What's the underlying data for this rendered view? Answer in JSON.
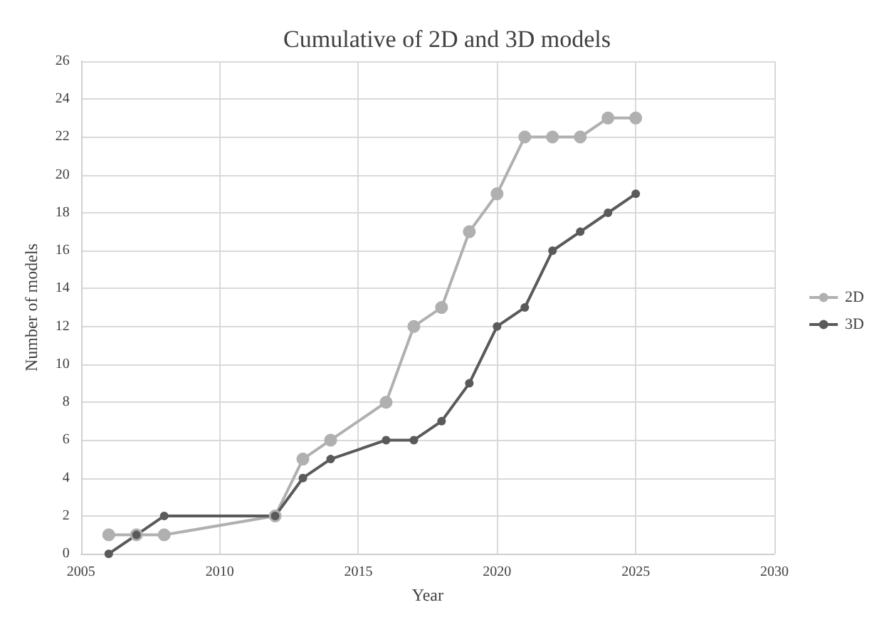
{
  "chart_data": {
    "type": "line",
    "title": "Cumulative of 2D and 3D models",
    "xlabel": "Year",
    "ylabel": "Number of models",
    "x": [
      2006,
      2007,
      2008,
      2012,
      2013,
      2014,
      2016,
      2017,
      2018,
      2019,
      2020,
      2021,
      2022,
      2023,
      2024,
      2025
    ],
    "series": [
      {
        "name": "2D",
        "color": "#b0b0b0",
        "values": [
          1,
          1,
          1,
          2,
          5,
          6,
          8,
          12,
          13,
          17,
          19,
          22,
          22,
          22,
          23,
          23
        ]
      },
      {
        "name": "3D",
        "color": "#5a5a5a",
        "values": [
          0,
          1,
          2,
          2,
          4,
          5,
          6,
          6,
          7,
          9,
          12,
          13,
          16,
          17,
          18,
          19
        ]
      }
    ],
    "xlim": [
      2005,
      2030
    ],
    "xticks": [
      2005,
      2010,
      2015,
      2020,
      2025,
      2030
    ],
    "ylim": [
      0,
      26
    ],
    "yticks": [
      0,
      2,
      4,
      6,
      8,
      10,
      12,
      14,
      16,
      18,
      20,
      22,
      24,
      26
    ],
    "grid": true,
    "legend": "right",
    "marker": "circle",
    "line_style": "solid"
  }
}
